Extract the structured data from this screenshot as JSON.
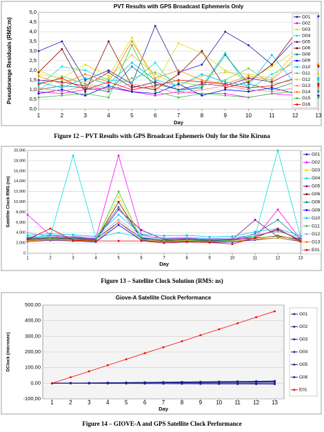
{
  "chart_data": [
    {
      "type": "line",
      "title": "PVT Results with GPS Broadcast Ephemeris Only",
      "ylabel": "Pseudorange Residuals (RMS;m)",
      "xlabel": "Day",
      "grid": true,
      "x": [
        1,
        2,
        3,
        4,
        5,
        6,
        7,
        8,
        9,
        10,
        11,
        12,
        13
      ],
      "xlim": [
        1,
        13
      ],
      "xticks": [
        1,
        2,
        3,
        4,
        5,
        6,
        7,
        8,
        9,
        10,
        11,
        12,
        13
      ],
      "ylim": [
        0,
        5
      ],
      "yticks": [
        {
          "value": 0,
          "label": "0,0"
        },
        {
          "value": 0.5,
          "label": "0,5"
        },
        {
          "value": 1,
          "label": "1,0"
        },
        {
          "value": 1.5,
          "label": "1,5"
        },
        {
          "value": 2,
          "label": "2,0"
        },
        {
          "value": 2.5,
          "label": "2,5"
        },
        {
          "value": 3,
          "label": "3,0"
        },
        {
          "value": 3.5,
          "label": "3,5"
        },
        {
          "value": 4,
          "label": "4,0"
        },
        {
          "value": 4.5,
          "label": "4,5"
        },
        {
          "value": 5,
          "label": "5,0"
        }
      ],
      "series": [
        {
          "name": "G01",
          "color": "#1f1fa0",
          "values": [
            3.0,
            3.5,
            1.5,
            2.0,
            1.3,
            4.3,
            1.9,
            2.3,
            4.0,
            3.3,
            2.3,
            3.6,
            4.8
          ]
        },
        {
          "name": "G02",
          "color": "#ff00ff",
          "values": [
            0.9,
            0.8,
            1.0,
            1.1,
            0.9,
            0.7,
            0.9,
            0.8,
            0.8,
            0.6,
            0.8,
            0.7,
            0.6
          ]
        },
        {
          "name": "G03",
          "color": "#e0e000",
          "values": [
            1.8,
            1.6,
            2.3,
            1.7,
            3.7,
            1.3,
            3.4,
            2.9,
            2.0,
            1.5,
            2.2,
            3.0,
            1.8
          ]
        },
        {
          "name": "G04",
          "color": "#00e0e0",
          "values": [
            1.2,
            2.2,
            2.0,
            1.5,
            1.4,
            2.4,
            0.9,
            1.2,
            2.9,
            1.0,
            1.8,
            2.4,
            1.5
          ]
        },
        {
          "name": "G05",
          "color": "#800080",
          "values": [
            1.5,
            1.4,
            1.2,
            1.9,
            1.1,
            1.4,
            1.0,
            1.3,
            1.2,
            1.6,
            1.4,
            2.0,
            1.3
          ]
        },
        {
          "name": "G06",
          "color": "#800000",
          "values": [
            1.9,
            3.1,
            0.9,
            3.5,
            1.2,
            1.0,
            1.8,
            3.0,
            1.1,
            1.4,
            2.3,
            3.9,
            2.2
          ]
        },
        {
          "name": "G08",
          "color": "#008080",
          "values": [
            1.0,
            1.2,
            1.1,
            0.9,
            2.2,
            1.3,
            1.0,
            1.1,
            2.8,
            1.3,
            1.0,
            1.4,
            0.9
          ]
        },
        {
          "name": "G09",
          "color": "#0000ff",
          "values": [
            0.8,
            1.0,
            0.7,
            1.2,
            0.9,
            0.8,
            1.3,
            0.7,
            1.0,
            0.9,
            1.1,
            0.8,
            0.7
          ]
        },
        {
          "name": "G10",
          "color": "#00bfff",
          "values": [
            1.4,
            1.1,
            1.6,
            1.3,
            2.4,
            1.5,
            1.2,
            1.8,
            1.4,
            1.2,
            2.8,
            1.3,
            1.6
          ]
        },
        {
          "name": "G11",
          "color": "#60d060",
          "values": [
            1.0,
            1.7,
            1.3,
            1.1,
            1.6,
            1.9,
            1.4,
            1.2,
            1.5,
            2.1,
            1.3,
            1.5,
            1.1
          ]
        },
        {
          "name": "G12",
          "color": "#d0d040",
          "values": [
            2.0,
            1.5,
            1.4,
            1.6,
            2.8,
            1.8,
            1.2,
            1.7,
            1.9,
            1.8,
            1.6,
            2.9,
            1.4
          ]
        },
        {
          "name": "G13",
          "color": "#ff8080",
          "values": [
            1.1,
            0.9,
            1.2,
            1.0,
            1.3,
            1.1,
            0.8,
            1.0,
            1.2,
            1.0,
            0.9,
            1.1,
            1.0
          ]
        },
        {
          "name": "G14",
          "color": "#ff8000",
          "values": [
            1.7,
            1.3,
            1.8,
            1.4,
            3.5,
            1.6,
            2.0,
            1.5,
            1.3,
            1.7,
            1.5,
            2.6,
            2.3
          ]
        },
        {
          "name": "G15",
          "color": "#40c040",
          "values": [
            0.6,
            0.7,
            0.8,
            0.6,
            3.3,
            0.9,
            0.6,
            0.8,
            0.7,
            0.6,
            0.8,
            0.9,
            0.6
          ]
        },
        {
          "name": "G16",
          "color": "#ff0000",
          "values": [
            1.3,
            1.6,
            1.0,
            1.4,
            1.0,
            1.2,
            1.5,
            1.4,
            1.3,
            1.1,
            1.2,
            1.6,
            1.2
          ]
        }
      ]
    },
    {
      "type": "line",
      "ylabel": "Satellite Clock RMS (ns)",
      "xlabel": "Day",
      "grid": true,
      "x": [
        1,
        2,
        3,
        4,
        5,
        6,
        7,
        8,
        9,
        10,
        11,
        12,
        13
      ],
      "xlim": [
        1,
        13
      ],
      "xticks": [
        1,
        2,
        3,
        4,
        5,
        6,
        7,
        8,
        9,
        10,
        11,
        12,
        13
      ],
      "ylim": [
        0,
        20000
      ],
      "yticks": [
        0,
        {
          "value": 2000,
          "label": "2,000"
        },
        {
          "value": 4000,
          "label": "4,000"
        },
        {
          "value": 6000,
          "label": "6,000"
        },
        {
          "value": 8000,
          "label": "8,000"
        },
        {
          "value": 10000,
          "label": "10,000"
        },
        {
          "value": 12000,
          "label": "12,000"
        },
        {
          "value": 14000,
          "label": "14,000"
        },
        {
          "value": 16000,
          "label": "16,000"
        },
        {
          "value": 18000,
          "label": "18,000"
        },
        {
          "value": 20000,
          "label": "20,000"
        }
      ],
      "series": [
        {
          "name": "G01",
          "color": "#1f1fa0",
          "values": [
            3000,
            3500,
            3200,
            2800,
            6000,
            3000,
            2600,
            2800,
            2500,
            2600,
            3300,
            4500,
            2600
          ]
        },
        {
          "name": "G02",
          "color": "#ff00ff",
          "values": [
            7500,
            3500,
            3000,
            2900,
            19000,
            3600,
            2800,
            2900,
            2700,
            2800,
            3000,
            8500,
            2700
          ]
        },
        {
          "name": "G03",
          "color": "#e0e000",
          "values": [
            2500,
            2700,
            2600,
            2400,
            11000,
            2600,
            2300,
            2500,
            2200,
            2300,
            2600,
            3500,
            2400
          ]
        },
        {
          "name": "G04",
          "color": "#00e0e0",
          "values": [
            3200,
            3300,
            19000,
            3000,
            4000,
            3100,
            2900,
            3000,
            2800,
            3000,
            3300,
            20000,
            3100
          ]
        },
        {
          "name": "G05",
          "color": "#800080",
          "values": [
            2800,
            3000,
            2900,
            2600,
            8500,
            4500,
            2700,
            2600,
            2500,
            2700,
            6500,
            3200,
            2800
          ]
        },
        {
          "name": "G06",
          "color": "#800000",
          "values": [
            2600,
            2800,
            2700,
            2500,
            10000,
            2800,
            2400,
            2600,
            2300,
            2500,
            2900,
            3400,
            2500
          ]
        },
        {
          "name": "G08",
          "color": "#008080",
          "values": [
            2900,
            3100,
            3000,
            2700,
            9000,
            2900,
            2600,
            2700,
            2600,
            2600,
            3800,
            6500,
            2700
          ]
        },
        {
          "name": "G09",
          "color": "#0000ff",
          "values": [
            2300,
            2500,
            2400,
            2200,
            5500,
            2500,
            2200,
            2300,
            2100,
            2200,
            2600,
            3000,
            2300
          ]
        },
        {
          "name": "G10",
          "color": "#00bfff",
          "values": [
            3500,
            3800,
            3600,
            3300,
            7500,
            3700,
            3400,
            3500,
            3200,
            3300,
            4200,
            4800,
            3400
          ]
        },
        {
          "name": "G11",
          "color": "#40c040",
          "values": [
            2700,
            2900,
            2800,
            2500,
            12000,
            2700,
            2500,
            2600,
            2400,
            2500,
            3000,
            3300,
            2600
          ]
        },
        {
          "name": "G12",
          "color": "#b0a0e0",
          "values": [
            4000,
            3200,
            3300,
            3100,
            6500,
            3400,
            3000,
            3100,
            2900,
            3000,
            3600,
            4200,
            3100
          ]
        },
        {
          "name": "G13",
          "color": "#ff8000",
          "values": [
            2400,
            2600,
            2500,
            2300,
            6000,
            2600,
            2300,
            2400,
            2200,
            2300,
            2700,
            3000,
            2400
          ]
        },
        {
          "name": "E01",
          "color": "#e00000",
          "values": [
            2700,
            4800,
            2500,
            2400,
            2400,
            2400,
            2000,
            2200,
            2100,
            1800,
            3000,
            4800,
            2300
          ]
        }
      ]
    },
    {
      "type": "line",
      "title": "Giove-A Satellite Clock Performance",
      "ylabel": "DClock (microsec)",
      "xlabel": "Day",
      "grid": true,
      "x": [
        1,
        2,
        3,
        4,
        5,
        6,
        7,
        8,
        9,
        10,
        11,
        12,
        13
      ],
      "xlim": [
        0.5,
        13.5
      ],
      "xticks": [
        1,
        2,
        3,
        4,
        5,
        6,
        7,
        8,
        9,
        10,
        11,
        12,
        13
      ],
      "ylim": [
        -100,
        500
      ],
      "yticks": [
        {
          "value": -100,
          "label": "-100,00"
        },
        {
          "value": 0,
          "label": "0,00"
        },
        {
          "value": 100,
          "label": "100,00"
        },
        {
          "value": 200,
          "label": "200,00"
        },
        {
          "value": 300,
          "label": "300,00"
        },
        {
          "value": 400,
          "label": "400,00"
        },
        {
          "value": 500,
          "label": "500,00"
        }
      ],
      "series": [
        {
          "name": "G01",
          "color": "#1f1f8f",
          "values": [
            0,
            0.5,
            1,
            1.5,
            2,
            2.5,
            3,
            3.5,
            4,
            4.5,
            5,
            5.5,
            6
          ]
        },
        {
          "name": "G02",
          "color": "#1f1f8f",
          "values": [
            0,
            1,
            2,
            3,
            4,
            5,
            6,
            7,
            8,
            9,
            10,
            11,
            12
          ]
        },
        {
          "name": "G03",
          "color": "#1f1f8f",
          "values": [
            0,
            -0.5,
            -1,
            -1.5,
            -2,
            -2.5,
            -3,
            -3.5,
            -4,
            -4.5,
            -5,
            -5.5,
            -6
          ]
        },
        {
          "name": "G04",
          "color": "#1f1f8f",
          "values": [
            0,
            1.2,
            2.4,
            3.6,
            4.8,
            6,
            7.2,
            8.4,
            9.6,
            10.8,
            12,
            13.2,
            14.4
          ]
        },
        {
          "name": "G05",
          "color": "#1f1f8f",
          "values": [
            0,
            -0.2,
            -0.4,
            -0.6,
            -0.8,
            -1,
            -1.2,
            -1.4,
            -1.6,
            -1.8,
            -2,
            -2.2,
            -2.4
          ]
        },
        {
          "name": "G06",
          "color": "#1f1f8f",
          "values": [
            0,
            0.8,
            1.6,
            2.4,
            3.2,
            4,
            4.8,
            5.6,
            6.4,
            7.2,
            8,
            8.8,
            9.6
          ]
        },
        {
          "name": "E01",
          "color": "#ff0000",
          "values": [
            0,
            38,
            76,
            115,
            153,
            192,
            230,
            268,
            307,
            345,
            383,
            422,
            460
          ]
        }
      ]
    }
  ],
  "captions": [
    "Figure 12 – PVT Results with GPS Broadcast Ephemeris Only for the Site Kiruna",
    "Figure 13 – Satellite Clock Solution (RMS: ns)",
    "Figure 14 – GIOVE-A and GPS Satellite Clock Performance"
  ]
}
